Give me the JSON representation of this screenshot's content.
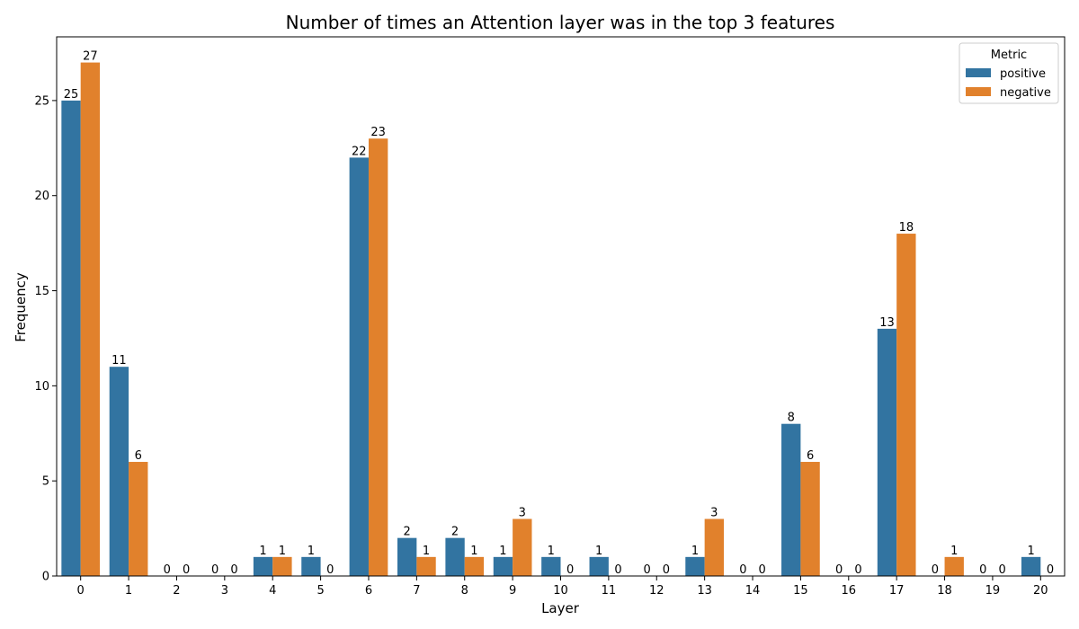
{
  "chart_data": {
    "type": "bar",
    "title": "Number of times an Attention layer was in the top 3 features",
    "xlabel": "Layer",
    "ylabel": "Frequency",
    "categories": [
      "0",
      "1",
      "2",
      "3",
      "4",
      "5",
      "6",
      "7",
      "8",
      "9",
      "10",
      "11",
      "12",
      "13",
      "14",
      "15",
      "16",
      "17",
      "18",
      "19",
      "20"
    ],
    "series": [
      {
        "name": "positive",
        "color": "#3274a1",
        "values": [
          25,
          11,
          0,
          0,
          1,
          1,
          22,
          2,
          2,
          1,
          1,
          1,
          0,
          1,
          0,
          8,
          0,
          13,
          0,
          0,
          1
        ]
      },
      {
        "name": "negative",
        "color": "#e1812c",
        "values": [
          27,
          6,
          0,
          0,
          1,
          0,
          23,
          1,
          1,
          3,
          0,
          0,
          0,
          3,
          0,
          6,
          0,
          18,
          1,
          0,
          0
        ]
      }
    ],
    "ylim": [
      0,
      28.35
    ],
    "yticks": [
      0,
      5,
      10,
      15,
      20,
      25
    ],
    "grid": false,
    "legend": {
      "title": "Metric",
      "position": "top-right"
    },
    "data_labels": true
  }
}
